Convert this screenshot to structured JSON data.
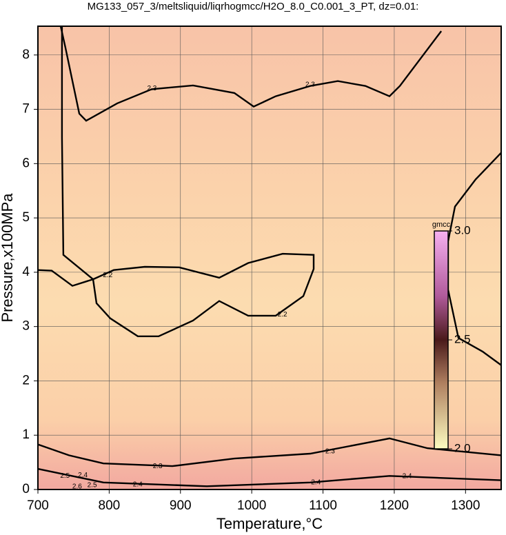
{
  "chart_data": {
    "type": "contour",
    "title": "MG133_057_3/meltsliquid/liqrhogmcc/H2O_8.0_C0.001_3_PT, dz=0.01:",
    "xlabel": "Temperature,°C",
    "ylabel": "Pressure,x100MPa",
    "xlim": [
      700,
      1350
    ],
    "ylim": [
      0,
      8.53
    ],
    "xticks": [
      700,
      800,
      900,
      1000,
      1100,
      1200,
      1300
    ],
    "yticks": [
      0,
      1,
      2,
      3,
      4,
      5,
      6,
      7,
      8
    ],
    "grid": true,
    "contours": [
      {
        "level": 2.3,
        "x": [
          731.9,
          738.7,
          758,
          767.7,
          811.2,
          859.6,
          917.6,
          975.7,
          1002.8,
          1033.7,
          1082.1,
          1120.8,
          1159.5,
          1193.3,
          1207.8,
          1265.9
        ],
        "y": [
          8.53,
          8.13,
          6.92,
          6.79,
          7.11,
          7.37,
          7.44,
          7.3,
          7.05,
          7.24,
          7.43,
          7.52,
          7.43,
          7.24,
          7.43,
          8.44
        ]
      },
      {
        "level": 2.2,
        "x": [
          777.4,
          806.4,
          849.9,
          898.3,
          954.4,
          995,
          1043.4,
          1086.9,
          1086.9,
          1072.4,
          1033.7,
          995,
          954.4,
          917.6,
          869.3,
          840.3,
          801.6,
          782.2,
          777.4
        ],
        "y": [
          3.87,
          4.04,
          4.1,
          4.09,
          3.9,
          4.17,
          4.34,
          4.32,
          4.06,
          3.56,
          3.2,
          3.2,
          3.47,
          3.11,
          2.82,
          2.82,
          3.15,
          3.43,
          3.87
        ]
      },
      {
        "level": 2.2,
        "x": [
          700,
          719.3,
          748.4,
          777.4
        ],
        "y": [
          4.04,
          4.03,
          3.75,
          3.87
        ]
      },
      {
        "level": 2.2,
        "x": [
          733.8,
          733.8,
          735.7,
          777.4
        ],
        "y": [
          8.53,
          6.48,
          4.32,
          3.87
        ]
      },
      {
        "level": 2.3,
        "x": [
          700,
          743.5,
          791.9,
          888.6,
          975.7,
          1082.1,
          1193.3,
          1246.5,
          1350
        ],
        "y": [
          0.83,
          0.63,
          0.48,
          0.43,
          0.57,
          0.66,
          0.94,
          0.76,
          0.63
        ]
      },
      {
        "level": 2.4,
        "x": [
          700,
          791.9,
          937,
          1082.1,
          1193.3,
          1350
        ],
        "y": [
          0.38,
          0.13,
          0.06,
          0.13,
          0.25,
          0.17
        ]
      },
      {
        "x": [
          1350,
          1314.2,
          1285.2,
          1275.5,
          1275.5,
          1290,
          1323.9,
          1350
        ],
        "y": [
          6.2,
          5.71,
          5.21,
          4.57,
          3.68,
          2.79,
          2.54,
          2.29
        ]
      }
    ],
    "contour_labels": [
      {
        "x": 860,
        "y": 7.38,
        "value": 2.3
      },
      {
        "x": 1082,
        "y": 7.45,
        "value": 2.3
      },
      {
        "x": 798,
        "y": 3.94,
        "value": 2.2
      },
      {
        "x": 1043,
        "y": 3.22,
        "value": 2.2
      },
      {
        "x": 868,
        "y": 0.43,
        "value": 2.3
      },
      {
        "x": 1110,
        "y": 0.7,
        "value": 2.3
      },
      {
        "x": 840,
        "y": 0.09,
        "value": 2.4
      },
      {
        "x": 1090,
        "y": 0.13,
        "value": 2.4
      },
      {
        "x": 1218,
        "y": 0.24,
        "value": 2.4
      },
      {
        "x": 763,
        "y": 0.26,
        "value": 2.4
      },
      {
        "x": 738,
        "y": 0.25,
        "value": 2.5
      },
      {
        "x": 776,
        "y": 0.08,
        "value": 2.5
      },
      {
        "x": 755,
        "y": 0.05,
        "value": 2.6
      }
    ],
    "colorbar": {
      "label": "gmcc",
      "lim": [
        2.0,
        3.0
      ],
      "ticks": [
        {
          "value": 3,
          "label": "3.0"
        },
        2.5,
        {
          "value": 2,
          "label": "2.0"
        }
      ]
    }
  }
}
